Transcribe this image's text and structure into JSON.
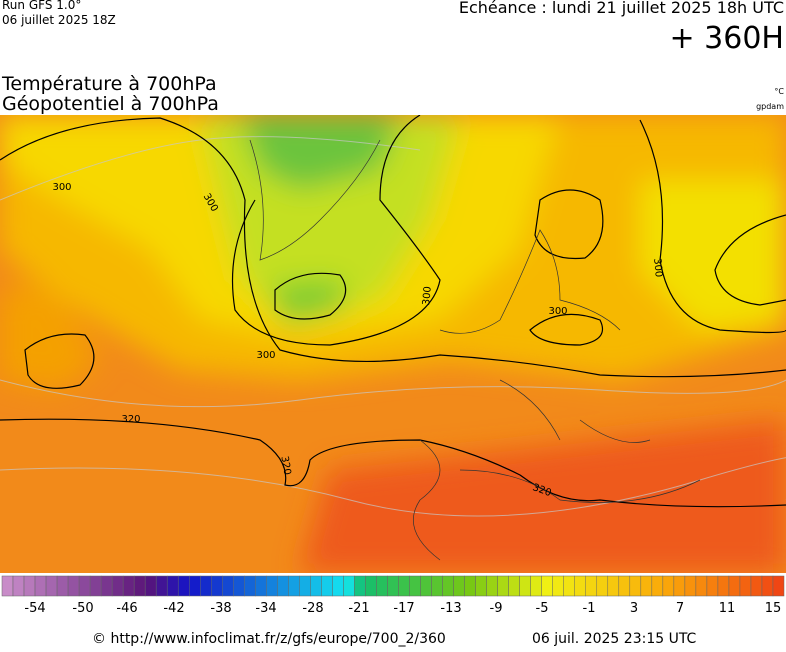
{
  "header": {
    "run": "Run GFS 1.0°",
    "date": "06 juillet 2025 18Z",
    "forecast": "Echéance : lundi 21 juillet 2025 18h UTC",
    "lead": "+ 360H"
  },
  "titles": [
    "Température à 700hPa",
    "Géopotentiel à 700hPa"
  ],
  "units": [
    "°C",
    "gpdam"
  ],
  "map": {
    "contour_labels": [
      "300",
      "300",
      "300",
      "300",
      "300",
      "300",
      "320",
      "320",
      "320"
    ]
  },
  "colorbar": {
    "labels": [
      "-54",
      "-50",
      "-46",
      "-42",
      "-38",
      "-34",
      "-28",
      "-21",
      "-17",
      "-13",
      "-9",
      "-5",
      "-1",
      "3",
      "7",
      "11",
      "15"
    ]
  },
  "footer": {
    "url": "© http://www.infoclimat.fr/z/gfs/europe/700_2/360",
    "timestamp": "06 juil. 2025 23:15 UTC"
  }
}
